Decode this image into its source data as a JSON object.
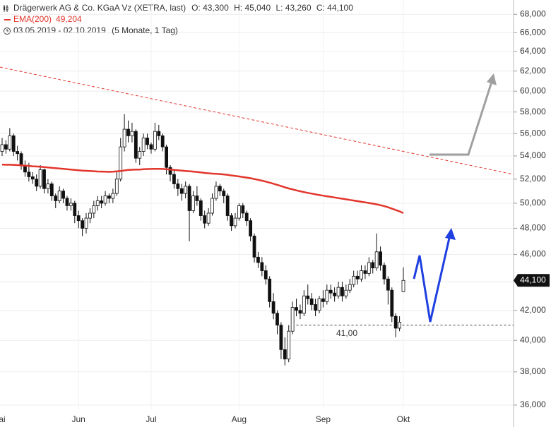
{
  "chart_data": {
    "type": "candlestick",
    "title": "Drägerwerk AG & Co. KGaA Vz (XETRA, last)",
    "ohlc_labels": [
      "O: 43,300",
      "H: 45,040",
      "L: 43,260",
      "C: 44,100"
    ],
    "date_range": "03.05.2019 - 02.10.2019",
    "period": "(5 Monate, 1 Tag)",
    "log_scale": true,
    "grid": true,
    "ylim": [
      35750,
      69600
    ],
    "yticks": [
      {
        "value": 36000,
        "label": "36,000"
      },
      {
        "value": 38000,
        "label": "38,000"
      },
      {
        "value": 40000,
        "label": "40,000"
      },
      {
        "value": 42000,
        "label": "42,000"
      },
      {
        "value": 44000,
        "label": "44,000"
      },
      {
        "value": 46000,
        "label": "46,000"
      },
      {
        "value": 48000,
        "label": "48,000"
      },
      {
        "value": 50000,
        "label": "50,000"
      },
      {
        "value": 52000,
        "label": "52,000"
      },
      {
        "value": 54000,
        "label": "54,000"
      },
      {
        "value": 56000,
        "label": "56,000"
      },
      {
        "value": 58000,
        "label": "58,000"
      },
      {
        "value": 60000,
        "label": "60,000"
      },
      {
        "value": 62000,
        "label": "62,000"
      },
      {
        "value": 64000,
        "label": "64,000"
      },
      {
        "value": 66000,
        "label": "66,000"
      },
      {
        "value": 68000,
        "label": "68,000"
      }
    ],
    "categories": [
      "Mai",
      null,
      null,
      null,
      null,
      null,
      null,
      null,
      null,
      null,
      null,
      null,
      null,
      null,
      null,
      null,
      null,
      null,
      null,
      null,
      "Jun",
      null,
      null,
      null,
      null,
      null,
      null,
      null,
      null,
      null,
      null,
      null,
      null,
      null,
      null,
      null,
      null,
      null,
      null,
      "Jul",
      null,
      null,
      null,
      null,
      null,
      null,
      null,
      null,
      null,
      null,
      null,
      null,
      null,
      null,
      null,
      null,
      null,
      null,
      null,
      null,
      null,
      null,
      "Aug",
      null,
      null,
      null,
      null,
      null,
      null,
      null,
      null,
      null,
      null,
      null,
      null,
      null,
      null,
      null,
      null,
      null,
      null,
      null,
      null,
      null,
      "Sep",
      null,
      null,
      null,
      null,
      null,
      null,
      null,
      null,
      null,
      null,
      null,
      null,
      null,
      null,
      null,
      null,
      null,
      null,
      null,
      null,
      "Okt"
    ],
    "candles": {
      "up_color": "#ffffff",
      "down_color": "#111111",
      "open": [
        54400,
        55000,
        54600,
        55800,
        54400,
        54200,
        53200,
        52600,
        52200,
        52000,
        51400,
        52800,
        51200,
        51600,
        50600,
        50200,
        51000,
        50400,
        49800,
        50000,
        49000,
        48600,
        48000,
        48800,
        49200,
        49800,
        50200,
        50000,
        50600,
        50400,
        50800,
        52000,
        54800,
        56400,
        55800,
        56200,
        53800,
        54400,
        55600,
        55000,
        54600,
        56200,
        55800,
        54800,
        53000,
        52400,
        51600,
        51200,
        50800,
        51400,
        49400,
        50600,
        50200,
        49000,
        48400,
        49200,
        50400,
        51400,
        51000,
        50600,
        49000,
        48200,
        48800,
        49800,
        49200,
        48600,
        47400,
        45800,
        45400,
        44800,
        44200,
        42600,
        41800,
        41000,
        39400,
        38800,
        40600,
        42200,
        42000,
        41800,
        43000,
        42800,
        42400,
        42000,
        42800,
        42600,
        43400,
        43200,
        43000,
        43600,
        43000,
        43400,
        43800,
        44400,
        44200,
        44800,
        44600,
        45400,
        45000,
        46200,
        45200,
        44200,
        43400,
        41600,
        40800,
        43300
      ],
      "high": [
        55600,
        55400,
        56500,
        56000,
        54900,
        54400,
        53600,
        53400,
        52600,
        52400,
        53200,
        52900,
        52000,
        51800,
        50800,
        51400,
        51200,
        50600,
        50400,
        50200,
        49400,
        48800,
        49200,
        49600,
        50200,
        50600,
        50600,
        51000,
        50800,
        51200,
        52600,
        55600,
        57800,
        57200,
        57000,
        56400,
        54800,
        56000,
        56000,
        55200,
        57000,
        56800,
        56000,
        55000,
        53200,
        52800,
        52000,
        51600,
        51800,
        51600,
        51000,
        51400,
        50400,
        49400,
        49600,
        50800,
        51800,
        51600,
        51200,
        50800,
        49200,
        49200,
        50000,
        50000,
        49400,
        48800,
        47600,
        46200,
        45800,
        45200,
        44400,
        43200,
        42000,
        41200,
        40200,
        41000,
        42600,
        42800,
        42400,
        43400,
        43800,
        43200,
        42800,
        43000,
        43400,
        43800,
        43800,
        43600,
        44000,
        44000,
        43800,
        44200,
        44800,
        44800,
        45200,
        45200,
        45800,
        45600,
        47600,
        46600,
        45400,
        44400,
        43600,
        41800,
        41600,
        45040
      ],
      "low": [
        54000,
        54200,
        54400,
        54000,
        53600,
        52800,
        52200,
        51800,
        51600,
        51000,
        51200,
        50800,
        50800,
        50200,
        49600,
        50000,
        50000,
        49400,
        49400,
        48400,
        48000,
        47400,
        47600,
        48400,
        48800,
        49400,
        49600,
        49800,
        50000,
        50000,
        50600,
        51800,
        54400,
        55200,
        55200,
        53400,
        53200,
        54000,
        54600,
        54200,
        54400,
        55400,
        54400,
        52400,
        51800,
        51200,
        50600,
        50200,
        50400,
        47000,
        49200,
        49800,
        48600,
        48000,
        48200,
        49000,
        50200,
        50600,
        50000,
        48600,
        47800,
        48000,
        48600,
        48800,
        48200,
        47000,
        45400,
        45000,
        44400,
        43800,
        42200,
        41400,
        40400,
        38800,
        38400,
        38600,
        40400,
        41600,
        41400,
        41600,
        42400,
        42000,
        41600,
        41800,
        42200,
        42400,
        42800,
        42600,
        42800,
        42600,
        42800,
        43200,
        43600,
        43800,
        44000,
        44200,
        44400,
        44600,
        44800,
        44800,
        43800,
        42400,
        41200,
        40200,
        40600,
        43260
      ],
      "close": [
        55000,
        54600,
        55800,
        54400,
        54200,
        53200,
        52600,
        52200,
        52000,
        51400,
        52800,
        51200,
        51600,
        50600,
        50200,
        51000,
        50400,
        49800,
        50000,
        49000,
        48600,
        48000,
        48800,
        49200,
        49800,
        50200,
        50000,
        50600,
        50400,
        50800,
        52000,
        54800,
        56400,
        55800,
        56200,
        53800,
        54400,
        55600,
        55000,
        54600,
        56200,
        55800,
        54800,
        53000,
        52400,
        51600,
        51200,
        50800,
        51400,
        49400,
        50600,
        50200,
        49000,
        48400,
        49200,
        50400,
        51400,
        51000,
        50600,
        49000,
        48200,
        48800,
        49800,
        49200,
        48600,
        47400,
        45800,
        45400,
        44800,
        44200,
        42600,
        41800,
        41000,
        39400,
        38800,
        40600,
        42200,
        42000,
        41800,
        43000,
        42800,
        42400,
        42000,
        42800,
        42600,
        43400,
        43200,
        43000,
        43600,
        43000,
        43400,
        43800,
        44400,
        44200,
        44800,
        44600,
        45400,
        45000,
        46200,
        45200,
        44200,
        43400,
        41600,
        40800,
        41200,
        44100
      ]
    },
    "ema": {
      "name": "EMA(200)",
      "color": "#e2352b",
      "value_label": "49,204",
      "values": [
        53240,
        53230,
        53230,
        53220,
        53200,
        53180,
        53160,
        53130,
        53100,
        53080,
        53060,
        53030,
        53000,
        52970,
        52940,
        52910,
        52880,
        52850,
        52820,
        52790,
        52760,
        52730,
        52710,
        52690,
        52670,
        52650,
        52640,
        52630,
        52620,
        52630,
        52660,
        52700,
        52740,
        52780,
        52800,
        52810,
        52820,
        52840,
        52860,
        52870,
        52880,
        52880,
        52870,
        52850,
        52820,
        52790,
        52760,
        52730,
        52700,
        52670,
        52640,
        52610,
        52570,
        52530,
        52500,
        52470,
        52450,
        52430,
        52400,
        52360,
        52310,
        52270,
        52230,
        52180,
        52130,
        52080,
        52010,
        51940,
        51870,
        51790,
        51700,
        51610,
        51520,
        51420,
        51310,
        51220,
        51140,
        51060,
        50980,
        50910,
        50850,
        50790,
        50730,
        50670,
        50620,
        50570,
        50520,
        50470,
        50420,
        50370,
        50320,
        50270,
        50220,
        50170,
        50120,
        50070,
        50020,
        49970,
        49910,
        49840,
        49760,
        49670,
        49560,
        49450,
        49340,
        49204
      ]
    },
    "last_price": {
      "value": 44100,
      "label": "44,100"
    },
    "support": {
      "value": 41000,
      "label": "41,00"
    },
    "trend_line": {
      "start": 62400,
      "end": 52400,
      "color": "#e2352b"
    }
  }
}
